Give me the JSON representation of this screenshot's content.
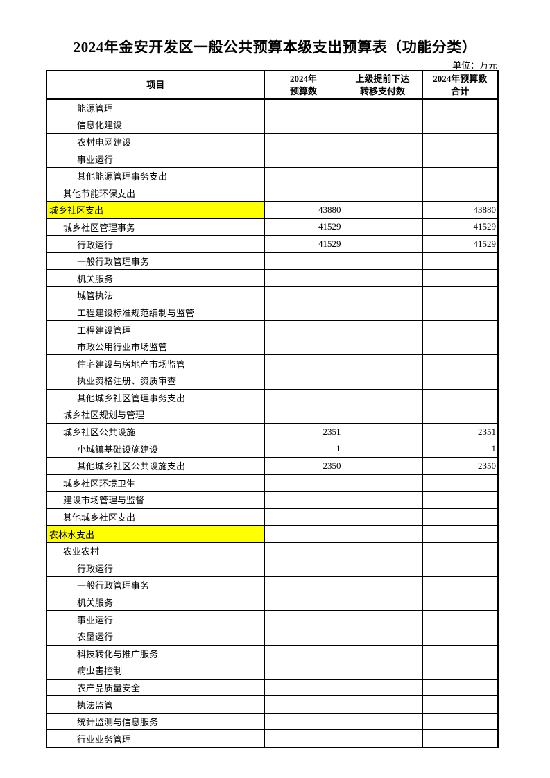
{
  "page": {
    "title": "2024年金安开发区一般公共预算本级支出预算表（功能分类）",
    "unit": "单位：万元"
  },
  "table": {
    "highlight_color": "#FFFF00",
    "columns": [
      {
        "line1": "项目",
        "line2": ""
      },
      {
        "line1": "2024年",
        "line2": "预算数"
      },
      {
        "line1": "上级提前下达",
        "line2": "转移支付数"
      },
      {
        "line1": "2024年预算数",
        "line2": "合计"
      }
    ],
    "rows": [
      {
        "label": "能源管理",
        "indent": 2,
        "budget": "",
        "transfer": "",
        "total": "",
        "highlight": false
      },
      {
        "label": "信息化建设",
        "indent": 2,
        "budget": "",
        "transfer": "",
        "total": "",
        "highlight": false
      },
      {
        "label": "农村电网建设",
        "indent": 2,
        "budget": "",
        "transfer": "",
        "total": "",
        "highlight": false
      },
      {
        "label": "事业运行",
        "indent": 2,
        "budget": "",
        "transfer": "",
        "total": "",
        "highlight": false
      },
      {
        "label": "其他能源管理事务支出",
        "indent": 2,
        "budget": "",
        "transfer": "",
        "total": "",
        "highlight": false
      },
      {
        "label": "其他节能环保支出",
        "indent": 1,
        "budget": "",
        "transfer": "",
        "total": "",
        "highlight": false
      },
      {
        "label": "城乡社区支出",
        "indent": 0,
        "budget": "43880",
        "transfer": "",
        "total": "43880",
        "highlight": true
      },
      {
        "label": "城乡社区管理事务",
        "indent": 1,
        "budget": "41529",
        "transfer": "",
        "total": "41529",
        "highlight": false
      },
      {
        "label": "行政运行",
        "indent": 2,
        "budget": "41529",
        "transfer": "",
        "total": "41529",
        "highlight": false
      },
      {
        "label": "一般行政管理事务",
        "indent": 2,
        "budget": "",
        "transfer": "",
        "total": "",
        "highlight": false
      },
      {
        "label": "机关服务",
        "indent": 2,
        "budget": "",
        "transfer": "",
        "total": "",
        "highlight": false
      },
      {
        "label": "城管执法",
        "indent": 2,
        "budget": "",
        "transfer": "",
        "total": "",
        "highlight": false
      },
      {
        "label": "工程建设标准规范编制与监管",
        "indent": 2,
        "budget": "",
        "transfer": "",
        "total": "",
        "highlight": false
      },
      {
        "label": "工程建设管理",
        "indent": 2,
        "budget": "",
        "transfer": "",
        "total": "",
        "highlight": false
      },
      {
        "label": "市政公用行业市场监管",
        "indent": 2,
        "budget": "",
        "transfer": "",
        "total": "",
        "highlight": false
      },
      {
        "label": "住宅建设与房地产市场监管",
        "indent": 2,
        "budget": "",
        "transfer": "",
        "total": "",
        "highlight": false
      },
      {
        "label": "执业资格注册、资质审查",
        "indent": 2,
        "budget": "",
        "transfer": "",
        "total": "",
        "highlight": false
      },
      {
        "label": "其他城乡社区管理事务支出",
        "indent": 2,
        "budget": "",
        "transfer": "",
        "total": "",
        "highlight": false
      },
      {
        "label": "城乡社区规划与管理",
        "indent": 1,
        "budget": "",
        "transfer": "",
        "total": "",
        "highlight": false
      },
      {
        "label": "城乡社区公共设施",
        "indent": 1,
        "budget": "2351",
        "transfer": "",
        "total": "2351",
        "highlight": false
      },
      {
        "label": "小城镇基础设施建设",
        "indent": 2,
        "budget": "1",
        "transfer": "",
        "total": "1",
        "highlight": false
      },
      {
        "label": "其他城乡社区公共设施支出",
        "indent": 2,
        "budget": "2350",
        "transfer": "",
        "total": "2350",
        "highlight": false
      },
      {
        "label": "城乡社区环境卫生",
        "indent": 1,
        "budget": "",
        "transfer": "",
        "total": "",
        "highlight": false
      },
      {
        "label": "建设市场管理与监督",
        "indent": 1,
        "budget": "",
        "transfer": "",
        "total": "",
        "highlight": false
      },
      {
        "label": "其他城乡社区支出",
        "indent": 1,
        "budget": "",
        "transfer": "",
        "total": "",
        "highlight": false
      },
      {
        "label": "农林水支出",
        "indent": 0,
        "budget": "",
        "transfer": "",
        "total": "",
        "highlight": true
      },
      {
        "label": "农业农村",
        "indent": 1,
        "budget": "",
        "transfer": "",
        "total": "",
        "highlight": false
      },
      {
        "label": "行政运行",
        "indent": 2,
        "budget": "",
        "transfer": "",
        "total": "",
        "highlight": false
      },
      {
        "label": "一般行政管理事务",
        "indent": 2,
        "budget": "",
        "transfer": "",
        "total": "",
        "highlight": false
      },
      {
        "label": "机关服务",
        "indent": 2,
        "budget": "",
        "transfer": "",
        "total": "",
        "highlight": false
      },
      {
        "label": "事业运行",
        "indent": 2,
        "budget": "",
        "transfer": "",
        "total": "",
        "highlight": false
      },
      {
        "label": "农垦运行",
        "indent": 2,
        "budget": "",
        "transfer": "",
        "total": "",
        "highlight": false
      },
      {
        "label": "科技转化与推广服务",
        "indent": 2,
        "budget": "",
        "transfer": "",
        "total": "",
        "highlight": false
      },
      {
        "label": "病虫害控制",
        "indent": 2,
        "budget": "",
        "transfer": "",
        "total": "",
        "highlight": false
      },
      {
        "label": "农产品质量安全",
        "indent": 2,
        "budget": "",
        "transfer": "",
        "total": "",
        "highlight": false
      },
      {
        "label": "执法监管",
        "indent": 2,
        "budget": "",
        "transfer": "",
        "total": "",
        "highlight": false
      },
      {
        "label": "统计监测与信息服务",
        "indent": 2,
        "budget": "",
        "transfer": "",
        "total": "",
        "highlight": false
      },
      {
        "label": "行业业务管理",
        "indent": 2,
        "budget": "",
        "transfer": "",
        "total": "",
        "highlight": false
      }
    ]
  }
}
